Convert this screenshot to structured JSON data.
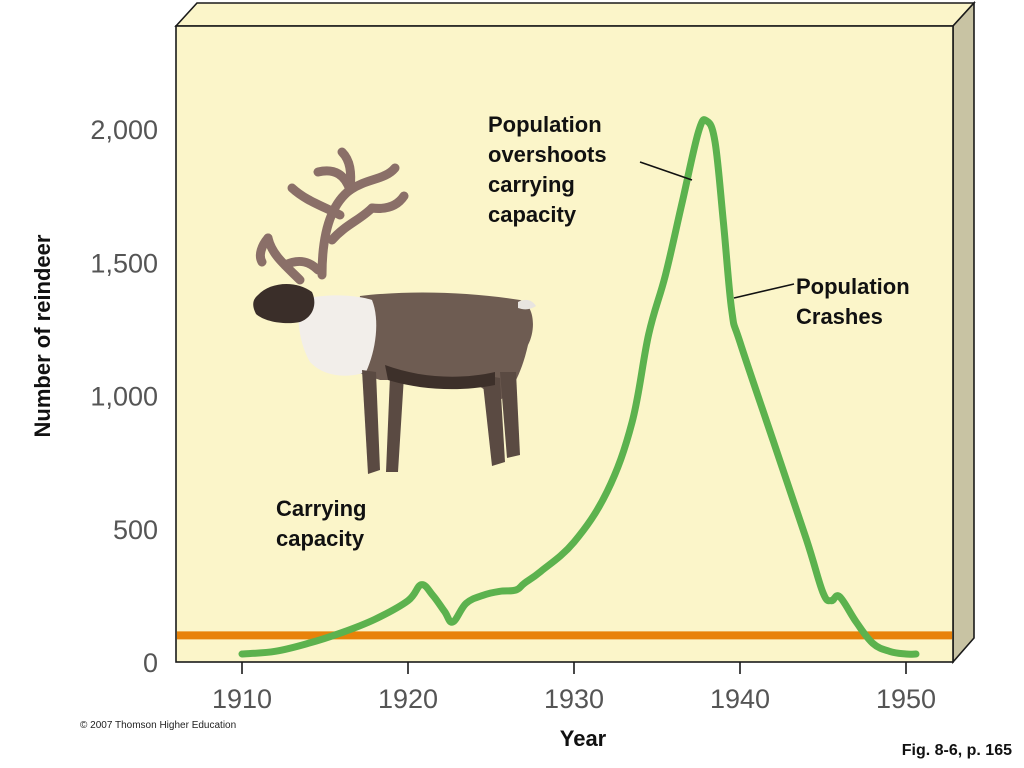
{
  "chart_data": {
    "type": "line",
    "title": "",
    "xlabel": "Year",
    "ylabel": "Number of reindeer",
    "xlim": [
      1906,
      1953
    ],
    "ylim": [
      0,
      2400
    ],
    "x_ticks": [
      1910,
      1920,
      1930,
      1940,
      1950
    ],
    "x_tick_labels": [
      "1910",
      "1920",
      "1930",
      "1940",
      "1950"
    ],
    "y_ticks": [
      0,
      500,
      1000,
      1500,
      2000
    ],
    "y_tick_labels": [
      "0",
      "500",
      "1,000",
      "1,500",
      "2,000"
    ],
    "grid": false,
    "series": [
      {
        "color": "#5cb24e",
        "x": [
          1910,
          1912,
          1914,
          1916,
          1918,
          1920,
          1920.8,
          1921.5,
          1922.2,
          1922.7,
          1923.5,
          1924.5,
          1925.5,
          1926.5,
          1927,
          1928,
          1930,
          1932,
          1933.5,
          1934.5,
          1935.5,
          1936.5,
          1937.5,
          1938,
          1938.5,
          1939,
          1939.5,
          1940,
          1942,
          1944,
          1945,
          1945.5,
          1946,
          1947,
          1948,
          1949,
          1950,
          1950.6
        ],
        "y": [
          30,
          40,
          70,
          110,
          160,
          230,
          290,
          250,
          190,
          150,
          220,
          250,
          265,
          270,
          295,
          340,
          450,
          640,
          900,
          1230,
          1450,
          1720,
          1990,
          2030,
          1950,
          1650,
          1320,
          1200,
          830,
          460,
          260,
          230,
          245,
          150,
          70,
          40,
          30,
          30
        ]
      }
    ],
    "reference_lines": [
      {
        "y": 100,
        "color": "#e8820a"
      }
    ],
    "annotations": [
      {
        "lines": [
          "Population",
          "overshoots",
          "carrying",
          "capacity"
        ]
      },
      {
        "lines": [
          "Population",
          "Crashes"
        ]
      },
      {
        "lines": [
          "Carrying",
          "capacity"
        ]
      }
    ]
  },
  "plot_colors": {
    "background": "#fbf5c9",
    "side": "#c8c3a3",
    "frame": "#1a1a1a"
  },
  "image": {
    "name": "reindeer-illustration"
  },
  "footer": {
    "copyright": "© 2007 Thomson Higher Education",
    "figure_ref": "Fig. 8-6, p. 165"
  }
}
